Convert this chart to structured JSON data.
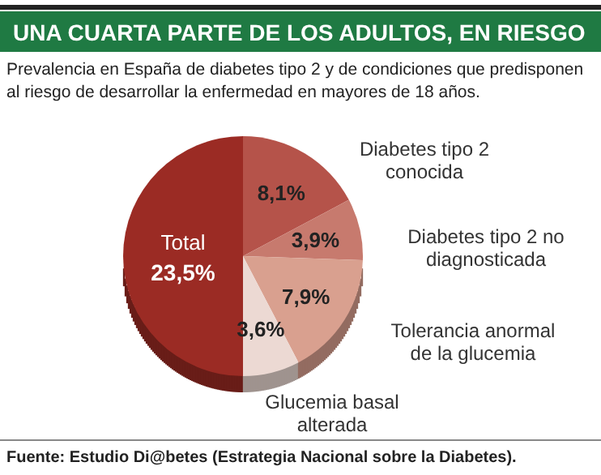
{
  "chart_data": {
    "type": "pie",
    "title": "UNA CUARTA PARTE DE LOS ADULTOS, EN RIESGO",
    "subtitle": "Prevalencia en España de diabetes tipo 2 y de condiciones que predisponen al riesgo de desarrollar la enfermedad en mayores de 18 años.",
    "categories": [
      "Diabetes tipo 2 conocida",
      "Diabetes tipo 2 no diagnosticada",
      "Tolerancia anormal de la glucemia",
      "Glucemia basal alterada",
      "Total"
    ],
    "values": [
      8.1,
      3.9,
      7.9,
      3.6,
      23.5
    ],
    "colors": [
      "#b5534a",
      "#c77a6e",
      "#d9a08f",
      "#ecd9d3",
      "#9b2b24"
    ],
    "value_labels": [
      "8,1%",
      "3,9%",
      "7,9%",
      "3,6%",
      "23,5%"
    ],
    "annotations": [
      "Fuente: Estudio Di@betes (Estrategia Nacional sobre la Diabetes)."
    ]
  }
}
